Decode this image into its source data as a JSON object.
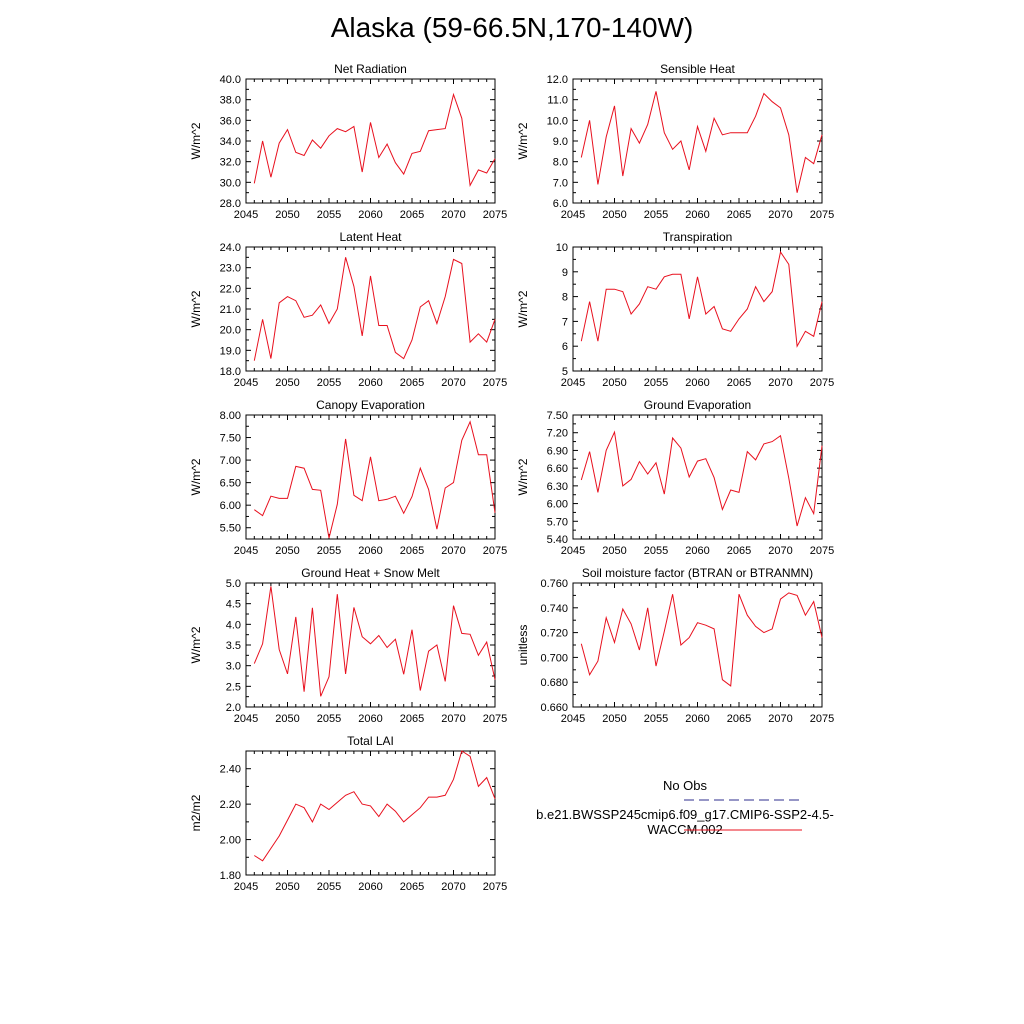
{
  "title": "Alaska (59-66.5N,170-140W)",
  "line_color": "#e8101e",
  "legend": {
    "entries": [
      {
        "name": "No Obs",
        "style": "dashed",
        "color": "#2c2c8c"
      },
      {
        "name": "b.e21.BWSSP245cmip6.f09_g17.CMIP6-SSP2-4.5-WACCM.002",
        "style": "solid",
        "color": "#e8101e"
      }
    ]
  },
  "chart_data": [
    {
      "type": "line",
      "title": "Net Radiation",
      "ylabel": "W/m^2",
      "xlim": [
        2045,
        2075
      ],
      "ylim": [
        28,
        40
      ],
      "xticks": [
        2045,
        2050,
        2055,
        2060,
        2065,
        2070,
        2075
      ],
      "yticks": [
        "28.0",
        "30.0",
        "32.0",
        "34.0",
        "36.0",
        "38.0",
        "40.0"
      ],
      "x": [
        2046,
        2047,
        2048,
        2049,
        2050,
        2051,
        2052,
        2053,
        2054,
        2055,
        2056,
        2057,
        2058,
        2059,
        2060,
        2061,
        2062,
        2063,
        2064,
        2065,
        2066,
        2067,
        2068,
        2069,
        2070,
        2071,
        2072,
        2073,
        2074,
        2075
      ],
      "values": [
        29.9,
        34.0,
        30.5,
        33.8,
        35.1,
        32.9,
        32.6,
        34.1,
        33.3,
        34.5,
        35.2,
        34.9,
        35.4,
        31.0,
        35.8,
        32.4,
        33.7,
        31.9,
        30.8,
        32.8,
        33.0,
        35.0,
        35.1,
        35.2,
        38.5,
        36.2,
        29.7,
        31.2,
        30.9,
        32.3
      ]
    },
    {
      "type": "line",
      "title": "Sensible Heat",
      "ylabel": "W/m^2",
      "xlim": [
        2045,
        2075
      ],
      "ylim": [
        6,
        12
      ],
      "xticks": [
        2045,
        2050,
        2055,
        2060,
        2065,
        2070,
        2075
      ],
      "yticks": [
        "6.0",
        "7.0",
        "8.0",
        "9.0",
        "10.0",
        "11.0",
        "12.0"
      ],
      "x": [
        2046,
        2047,
        2048,
        2049,
        2050,
        2051,
        2052,
        2053,
        2054,
        2055,
        2056,
        2057,
        2058,
        2059,
        2060,
        2061,
        2062,
        2063,
        2064,
        2065,
        2066,
        2067,
        2068,
        2069,
        2070,
        2071,
        2072,
        2073,
        2074,
        2075
      ],
      "values": [
        8.2,
        10.0,
        6.9,
        9.2,
        10.7,
        7.3,
        9.6,
        8.9,
        9.8,
        11.4,
        9.4,
        8.6,
        9.0,
        7.6,
        9.7,
        8.5,
        10.1,
        9.3,
        9.4,
        9.4,
        9.4,
        10.2,
        11.3,
        10.9,
        10.6,
        9.3,
        6.5,
        8.2,
        7.9,
        9.3
      ]
    },
    {
      "type": "line",
      "title": "Latent Heat",
      "ylabel": "W/m^2",
      "xlim": [
        2045,
        2075
      ],
      "ylim": [
        18,
        24
      ],
      "xticks": [
        2045,
        2050,
        2055,
        2060,
        2065,
        2070,
        2075
      ],
      "yticks": [
        "18.0",
        "19.0",
        "20.0",
        "21.0",
        "22.0",
        "23.0",
        "24.0"
      ],
      "x": [
        2046,
        2047,
        2048,
        2049,
        2050,
        2051,
        2052,
        2053,
        2054,
        2055,
        2056,
        2057,
        2058,
        2059,
        2060,
        2061,
        2062,
        2063,
        2064,
        2065,
        2066,
        2067,
        2068,
        2069,
        2070,
        2071,
        2072,
        2073,
        2074,
        2075
      ],
      "values": [
        18.5,
        20.5,
        18.6,
        21.3,
        21.6,
        21.4,
        20.6,
        20.7,
        21.2,
        20.3,
        21.0,
        23.5,
        22.1,
        19.7,
        22.6,
        20.2,
        20.2,
        18.9,
        18.6,
        19.5,
        21.1,
        21.4,
        20.3,
        21.6,
        23.4,
        23.2,
        19.4,
        19.8,
        19.4,
        20.5
      ]
    },
    {
      "type": "line",
      "title": "Transpiration",
      "ylabel": "W/m^2",
      "xlim": [
        2045,
        2075
      ],
      "ylim": [
        5,
        10
      ],
      "xticks": [
        2045,
        2050,
        2055,
        2060,
        2065,
        2070,
        2075
      ],
      "yticks": [
        "5",
        "6",
        "7",
        "8",
        "9",
        "10"
      ],
      "x": [
        2046,
        2047,
        2048,
        2049,
        2050,
        2051,
        2052,
        2053,
        2054,
        2055,
        2056,
        2057,
        2058,
        2059,
        2060,
        2061,
        2062,
        2063,
        2064,
        2065,
        2066,
        2067,
        2068,
        2069,
        2070,
        2071,
        2072,
        2073,
        2074,
        2075
      ],
      "values": [
        6.2,
        7.8,
        6.2,
        8.3,
        8.3,
        8.2,
        7.3,
        7.7,
        8.4,
        8.3,
        8.8,
        8.9,
        8.9,
        7.1,
        8.8,
        7.3,
        7.6,
        6.7,
        6.6,
        7.1,
        7.5,
        8.4,
        7.8,
        8.2,
        9.8,
        9.3,
        6.0,
        6.6,
        6.4,
        7.8
      ]
    },
    {
      "type": "line",
      "title": "Canopy Evaporation",
      "ylabel": "W/m^2",
      "xlim": [
        2045,
        2075
      ],
      "ylim": [
        5.25,
        8.0
      ],
      "xticks": [
        2045,
        2050,
        2055,
        2060,
        2065,
        2070,
        2075
      ],
      "yticks": [
        "5.50",
        "6.00",
        "6.50",
        "7.00",
        "7.50",
        "8.00"
      ],
      "x": [
        2046,
        2047,
        2048,
        2049,
        2050,
        2051,
        2052,
        2053,
        2054,
        2055,
        2056,
        2057,
        2058,
        2059,
        2060,
        2061,
        2062,
        2063,
        2064,
        2065,
        2066,
        2067,
        2068,
        2069,
        2070,
        2071,
        2072,
        2073,
        2074,
        2075
      ],
      "values": [
        5.9,
        5.77,
        6.2,
        6.15,
        6.15,
        6.86,
        6.82,
        6.35,
        6.33,
        5.27,
        6.02,
        7.47,
        6.22,
        6.1,
        7.07,
        6.1,
        6.13,
        6.2,
        5.82,
        6.19,
        6.82,
        6.35,
        5.47,
        6.38,
        6.5,
        7.44,
        7.85,
        7.12,
        7.12,
        5.83
      ]
    },
    {
      "type": "line",
      "title": "Ground Evaporation",
      "ylabel": "W/m^2",
      "xlim": [
        2045,
        2075
      ],
      "ylim": [
        5.4,
        7.5
      ],
      "xticks": [
        2045,
        2050,
        2055,
        2060,
        2065,
        2070,
        2075
      ],
      "yticks": [
        "5.40",
        "5.70",
        "6.00",
        "6.30",
        "6.60",
        "6.90",
        "7.20",
        "7.50"
      ],
      "x": [
        2046,
        2047,
        2048,
        2049,
        2050,
        2051,
        2052,
        2053,
        2054,
        2055,
        2056,
        2057,
        2058,
        2059,
        2060,
        2061,
        2062,
        2063,
        2064,
        2065,
        2066,
        2067,
        2068,
        2069,
        2070,
        2071,
        2072,
        2073,
        2074,
        2075
      ],
      "values": [
        6.4,
        6.88,
        6.19,
        6.9,
        7.21,
        6.3,
        6.41,
        6.71,
        6.5,
        6.69,
        6.16,
        7.11,
        6.94,
        6.45,
        6.72,
        6.76,
        6.44,
        5.9,
        6.23,
        6.19,
        6.88,
        6.74,
        7.01,
        7.05,
        7.15,
        6.43,
        5.62,
        6.1,
        5.83,
        6.98
      ]
    },
    {
      "type": "line",
      "title": "Ground Heat + Snow Melt",
      "ylabel": "W/m^2",
      "xlim": [
        2045,
        2075
      ],
      "ylim": [
        2.0,
        5.0
      ],
      "xticks": [
        2045,
        2050,
        2055,
        2060,
        2065,
        2070,
        2075
      ],
      "yticks": [
        "2.0",
        "2.5",
        "3.0",
        "3.5",
        "4.0",
        "4.5",
        "5.0"
      ],
      "x": [
        2046,
        2047,
        2048,
        2049,
        2050,
        2051,
        2052,
        2053,
        2054,
        2055,
        2056,
        2057,
        2058,
        2059,
        2060,
        2061,
        2062,
        2063,
        2064,
        2065,
        2066,
        2067,
        2068,
        2069,
        2070,
        2071,
        2072,
        2073,
        2074,
        2075
      ],
      "values": [
        3.05,
        3.53,
        4.92,
        3.39,
        2.8,
        4.18,
        2.37,
        4.4,
        2.26,
        2.73,
        4.73,
        2.8,
        4.41,
        3.7,
        3.53,
        3.73,
        3.44,
        3.64,
        2.79,
        3.87,
        2.4,
        3.35,
        3.5,
        2.62,
        4.45,
        3.78,
        3.76,
        3.25,
        3.57,
        2.66
      ]
    },
    {
      "type": "line",
      "title": "Soil moisture factor (BTRAN or BTRANMN)",
      "ylabel": "unitless",
      "xlim": [
        2045,
        2075
      ],
      "ylim": [
        0.66,
        0.76
      ],
      "xticks": [
        2045,
        2050,
        2055,
        2060,
        2065,
        2070,
        2075
      ],
      "yticks": [
        "0.660",
        "0.680",
        "0.700",
        "0.720",
        "0.740",
        "0.760"
      ],
      "x": [
        2046,
        2047,
        2048,
        2049,
        2050,
        2051,
        2052,
        2053,
        2054,
        2055,
        2056,
        2057,
        2058,
        2059,
        2060,
        2061,
        2062,
        2063,
        2064,
        2065,
        2066,
        2067,
        2068,
        2069,
        2070,
        2071,
        2072,
        2073,
        2074,
        2075
      ],
      "values": [
        0.711,
        0.686,
        0.697,
        0.732,
        0.712,
        0.739,
        0.727,
        0.706,
        0.74,
        0.693,
        0.721,
        0.751,
        0.71,
        0.716,
        0.728,
        0.726,
        0.723,
        0.682,
        0.677,
        0.751,
        0.734,
        0.725,
        0.72,
        0.723,
        0.747,
        0.752,
        0.75,
        0.734,
        0.745,
        0.716
      ]
    },
    {
      "type": "line",
      "title": "Total LAI",
      "ylabel": "m2/m2",
      "xlim": [
        2045,
        2075
      ],
      "ylim": [
        1.8,
        2.5
      ],
      "xticks": [
        2045,
        2050,
        2055,
        2060,
        2065,
        2070,
        2075
      ],
      "yticks": [
        "1.80",
        "2.00",
        "2.20",
        "2.40"
      ],
      "x": [
        2046,
        2047,
        2048,
        2049,
        2050,
        2051,
        2052,
        2053,
        2054,
        2055,
        2056,
        2057,
        2058,
        2059,
        2060,
        2061,
        2062,
        2063,
        2064,
        2065,
        2066,
        2067,
        2068,
        2069,
        2070,
        2071,
        2072,
        2073,
        2074,
        2075
      ],
      "values": [
        1.91,
        1.88,
        1.95,
        2.02,
        2.11,
        2.2,
        2.18,
        2.1,
        2.2,
        2.17,
        2.21,
        2.25,
        2.27,
        2.2,
        2.19,
        2.13,
        2.2,
        2.16,
        2.1,
        2.14,
        2.18,
        2.24,
        2.24,
        2.25,
        2.34,
        2.5,
        2.47,
        2.3,
        2.35,
        2.23
      ]
    }
  ]
}
